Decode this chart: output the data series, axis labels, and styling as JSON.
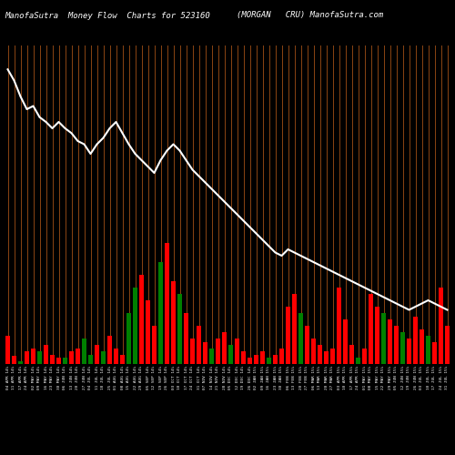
{
  "title_left": "ManofaSutra  Money Flow  Charts for 523160",
  "title_right": "(MORGAN   CRU) ManofaSutra.com",
  "background_color": "#000000",
  "line_color": "#ffffff",
  "grid_color": "#8B4513",
  "bar_colors": [
    "red",
    "red",
    "green",
    "red",
    "red",
    "green",
    "red",
    "red",
    "red",
    "green",
    "red",
    "red",
    "green",
    "green",
    "red",
    "green",
    "red",
    "red",
    "red",
    "green",
    "green",
    "red",
    "red",
    "red",
    "green",
    "red",
    "red",
    "green",
    "red",
    "red",
    "red",
    "red",
    "green",
    "red",
    "red",
    "green",
    "red",
    "red",
    "red",
    "red",
    "red",
    "green",
    "red",
    "red",
    "red",
    "red",
    "green",
    "red",
    "red",
    "red",
    "red",
    "red",
    "red",
    "red",
    "red",
    "green",
    "red",
    "red",
    "red",
    "green",
    "red",
    "red",
    "green",
    "red",
    "red",
    "red",
    "green",
    "red",
    "red",
    "red"
  ],
  "bar_heights": [
    18,
    5,
    2,
    8,
    10,
    8,
    12,
    6,
    4,
    4,
    8,
    10,
    16,
    6,
    12,
    8,
    18,
    10,
    6,
    32,
    48,
    56,
    40,
    24,
    64,
    76,
    52,
    44,
    32,
    16,
    24,
    14,
    10,
    16,
    20,
    12,
    16,
    8,
    4,
    6,
    8,
    4,
    6,
    10,
    36,
    44,
    32,
    24,
    16,
    12,
    8,
    10,
    48,
    28,
    12,
    4,
    10,
    44,
    36,
    32,
    28,
    24,
    20,
    16,
    30,
    22,
    18,
    14,
    48,
    24
  ],
  "line_values": [
    185,
    178,
    168,
    160,
    162,
    155,
    152,
    148,
    152,
    148,
    145,
    140,
    138,
    132,
    138,
    142,
    148,
    152,
    145,
    138,
    132,
    128,
    124,
    120,
    128,
    134,
    138,
    134,
    128,
    122,
    118,
    114,
    110,
    106,
    102,
    98,
    94,
    90,
    86,
    82,
    78,
    74,
    70,
    68,
    72,
    70,
    68,
    66,
    64,
    62,
    60,
    58,
    56,
    54,
    52,
    50,
    48,
    46,
    44,
    42,
    40,
    38,
    36,
    34,
    36,
    38,
    40,
    38,
    36,
    34
  ],
  "x_labels": [
    "04 APR 14%",
    "11 APR 14%",
    "17 APR 14%",
    "24 APR 14%",
    "02 MAY 14%",
    "09 MAY 14%",
    "16 MAY 14%",
    "23 MAY 14%",
    "30 MAY 14%",
    "06 JUN 14%",
    "13 JUN 14%",
    "20 JUN 14%",
    "27 JUN 14%",
    "04 JUL 14%",
    "11 JUL 14%",
    "18 JUL 14%",
    "25 JUL 14%",
    "01 AUG 14%",
    "08 AUG 14%",
    "15 AUG 14%",
    "22 AUG 14%",
    "29 AUG 14%",
    "05 SEP 14%",
    "12 SEP 14%",
    "19 SEP 14%",
    "26 SEP 14%",
    "03 OCT 14%",
    "10 OCT 14%",
    "17 OCT 14%",
    "24 OCT 14%",
    "31 OCT 14%",
    "07 NOV 14%",
    "14 NOV 14%",
    "21 NOV 14%",
    "28 NOV 14%",
    "05 DEC 14%",
    "12 DEC 14%",
    "19 DEC 14%",
    "26 DEC 14%",
    "02 JAN 15%",
    "09 JAN 15%",
    "16 JAN 15%",
    "23 JAN 15%",
    "30 JAN 15%",
    "06 FEB 15%",
    "13 FEB 15%",
    "20 FEB 15%",
    "27 FEB 15%",
    "06 MAR 15%",
    "13 MAR 15%",
    "20 MAR 15%",
    "27 MAR 15%",
    "03 APR 15%",
    "10 APR 15%",
    "17 APR 15%",
    "24 APR 15%",
    "01 MAY 15%",
    "08 MAY 15%",
    "15 MAY 15%",
    "22 MAY 15%",
    "29 MAY 15%",
    "05 JUN 15%",
    "12 JUN 15%",
    "19 JUN 15%",
    "26 JUN 15%",
    "03 JUL 15%",
    "10 JUL 15%",
    "17 JUL 15%",
    "24 JUL 15%",
    "31 JUL 15%"
  ],
  "ylim": [
    0,
    200
  ],
  "title_fontsize": 6.5,
  "label_fontsize": 3.2
}
